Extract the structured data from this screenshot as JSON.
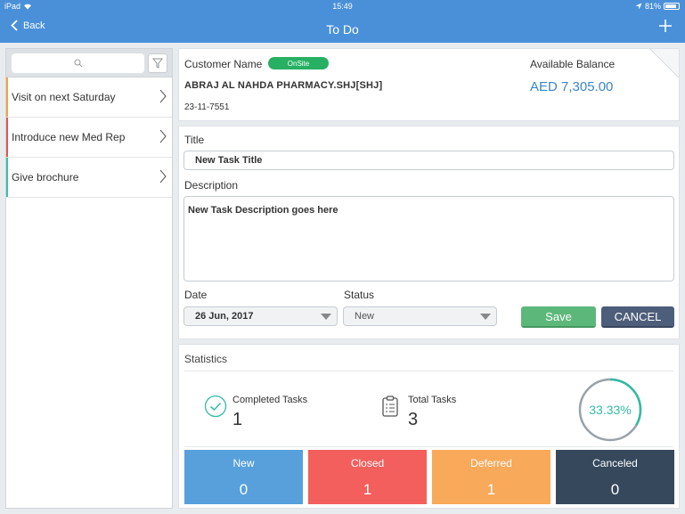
{
  "status_bar": {
    "device": "iPad",
    "time": "15:49",
    "battery": "81%"
  },
  "nav": {
    "back_label": "Back",
    "title": "To Do"
  },
  "colors": {
    "nav_bg": "#4a90d9",
    "onsite": "#27b063",
    "save": "#5cb87a",
    "cancel": "#4d5e7a",
    "progress": "#33bba3",
    "tile_new": "#57a0db",
    "tile_closed": "#f25f5c",
    "tile_deferred": "#f8a95a",
    "tile_canceled": "#36485c"
  },
  "sidebar": {
    "search_placeholder": "",
    "items": [
      {
        "label": "Visit on next Saturday",
        "color": "#f0a245"
      },
      {
        "label": "Introduce new Med Rep",
        "color": "#e25555"
      },
      {
        "label": "Give brochure",
        "color": "#3dbfa2"
      }
    ]
  },
  "customer": {
    "name_label": "Customer Name",
    "badge": "OnSite",
    "name": "ABRAJ AL NAHDA PHARMACY.SHJ[SHJ]",
    "code": "23-11-7551",
    "balance_label": "Available Balance",
    "balance": "AED 7,305.00"
  },
  "form": {
    "title_label": "Title",
    "title_value": "New Task Title",
    "description_label": "Description",
    "description_value": "New Task Description goes here",
    "date_label": "Date",
    "date_value": "26 Jun, 2017",
    "status_label": "Status",
    "status_value": "New",
    "save_label": "Save",
    "cancel_label": "CANCEL"
  },
  "stats": {
    "title": "Statistics",
    "completed_label": "Completed Tasks",
    "completed_value": "1",
    "total_label": "Total Tasks",
    "total_value": "3",
    "progress_text": "33.33%",
    "progress_fraction": 0.3333,
    "tiles": [
      {
        "label": "New",
        "value": "0"
      },
      {
        "label": "Closed",
        "value": "1"
      },
      {
        "label": "Deferred",
        "value": "1"
      },
      {
        "label": "Canceled",
        "value": "0"
      }
    ]
  }
}
